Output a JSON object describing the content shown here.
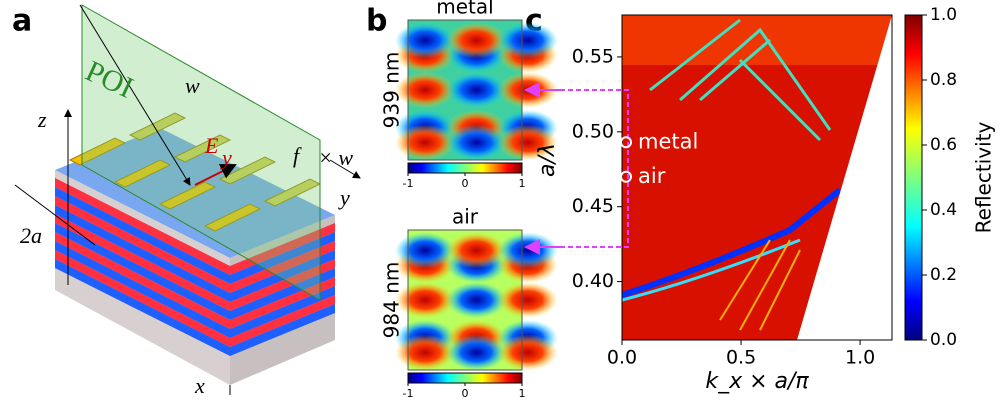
{
  "panel_labels": [
    "a",
    "b",
    "c"
  ],
  "panel_a": {
    "poi": "POI",
    "w": "w",
    "z": "z",
    "f": "f",
    "times_w": "× w",
    "y": "y",
    "two_a": "2a",
    "x": "x",
    "e": "E",
    "e_sub": "y"
  },
  "panel_b": [
    {
      "title": "metal",
      "wavelength": "939 nm",
      "scale_ticks": [
        {
          "value": -1,
          "label": "-1"
        },
        0,
        1
      ]
    },
    {
      "title": "air",
      "wavelength": "984 nm",
      "scale_ticks": [
        {
          "value": -1,
          "label": "-1"
        },
        0,
        1
      ]
    }
  ],
  "panel_c": {
    "xlabel": "k_x × a/π",
    "ylabel": "a/λ",
    "xlim": [
      0,
      1.134
    ],
    "ylim": [
      0.361,
      0.578
    ],
    "xticks": [
      {
        "value": 0,
        "label": "0.0"
      },
      0.5,
      {
        "value": 1,
        "label": "1.0"
      }
    ],
    "yticks": [
      {
        "value": 0.4,
        "label": "0.40"
      },
      0.45,
      {
        "value": 0.5,
        "label": "0.50"
      },
      0.55
    ],
    "markers": [
      {
        "label": "metal",
        "x": 0,
        "y": 0.493
      },
      {
        "label": "air",
        "x": 0,
        "y": 0.47
      }
    ],
    "colorbar": {
      "label": "Reflectivity",
      "lim": [
        0,
        1
      ],
      "ticks": [
        {
          "value": 0,
          "label": "0.0"
        },
        {
          "value": 0.2,
          "label": "0.2"
        },
        {
          "value": 0.4,
          "label": "0.4"
        },
        {
          "value": 0.6,
          "label": "0.6"
        },
        {
          "value": 0.8,
          "label": "0.8"
        },
        {
          "value": 1,
          "label": "1.0"
        }
      ]
    }
  }
}
